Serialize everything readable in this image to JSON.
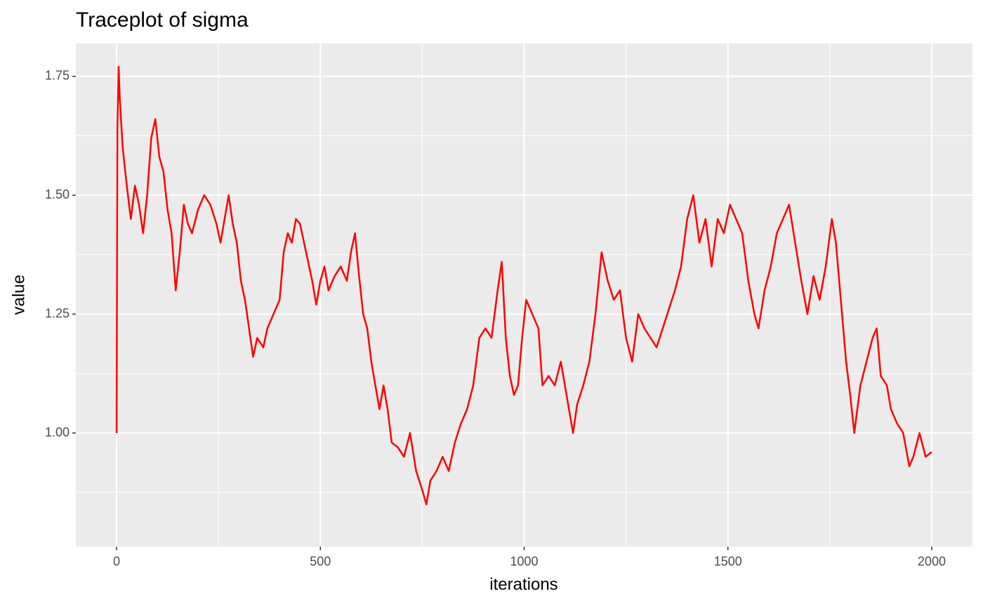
{
  "chart_data": {
    "type": "line",
    "title": "Traceplot of sigma",
    "x_label": "iterations",
    "y_label": "value",
    "x": [
      0,
      2,
      5,
      8,
      15,
      25,
      35,
      45,
      55,
      65,
      75,
      85,
      95,
      105,
      115,
      125,
      135,
      145,
      155,
      165,
      175,
      185,
      200,
      215,
      230,
      245,
      255,
      265,
      275,
      285,
      295,
      305,
      315,
      325,
      335,
      345,
      360,
      370,
      385,
      400,
      410,
      420,
      430,
      440,
      450,
      460,
      470,
      480,
      490,
      500,
      510,
      520,
      535,
      550,
      565,
      575,
      585,
      595,
      605,
      615,
      625,
      635,
      645,
      655,
      665,
      675,
      690,
      705,
      720,
      735,
      750,
      760,
      770,
      785,
      800,
      815,
      830,
      845,
      860,
      875,
      890,
      905,
      920,
      935,
      945,
      955,
      965,
      975,
      985,
      995,
      1005,
      1020,
      1035,
      1045,
      1060,
      1075,
      1090,
      1100,
      1110,
      1120,
      1130,
      1145,
      1160,
      1175,
      1190,
      1205,
      1220,
      1235,
      1250,
      1265,
      1280,
      1295,
      1310,
      1325,
      1340,
      1355,
      1370,
      1385,
      1400,
      1415,
      1430,
      1445,
      1460,
      1475,
      1490,
      1505,
      1520,
      1535,
      1550,
      1565,
      1575,
      1590,
      1605,
      1620,
      1635,
      1650,
      1665,
      1680,
      1695,
      1710,
      1725,
      1740,
      1755,
      1765,
      1775,
      1790,
      1800,
      1810,
      1825,
      1840,
      1855,
      1865,
      1875,
      1890,
      1900,
      1915,
      1930,
      1945,
      1955,
      1970,
      1985,
      2000
    ],
    "series": [
      {
        "name": "sigma",
        "color": "#ff0000",
        "values": [
          1.0,
          1.65,
          1.77,
          1.7,
          1.6,
          1.52,
          1.45,
          1.52,
          1.48,
          1.42,
          1.5,
          1.62,
          1.66,
          1.58,
          1.55,
          1.47,
          1.42,
          1.3,
          1.38,
          1.48,
          1.44,
          1.42,
          1.47,
          1.5,
          1.48,
          1.44,
          1.4,
          1.45,
          1.5,
          1.44,
          1.4,
          1.32,
          1.28,
          1.22,
          1.16,
          1.2,
          1.18,
          1.22,
          1.25,
          1.28,
          1.38,
          1.42,
          1.4,
          1.45,
          1.44,
          1.4,
          1.36,
          1.32,
          1.27,
          1.32,
          1.35,
          1.3,
          1.33,
          1.35,
          1.32,
          1.38,
          1.42,
          1.33,
          1.25,
          1.22,
          1.15,
          1.1,
          1.05,
          1.1,
          1.05,
          0.98,
          0.97,
          0.95,
          1.0,
          0.92,
          0.88,
          0.85,
          0.9,
          0.92,
          0.95,
          0.92,
          0.98,
          1.02,
          1.05,
          1.1,
          1.2,
          1.22,
          1.2,
          1.3,
          1.36,
          1.2,
          1.12,
          1.08,
          1.1,
          1.2,
          1.28,
          1.25,
          1.22,
          1.1,
          1.12,
          1.1,
          1.15,
          1.1,
          1.05,
          1.0,
          1.06,
          1.1,
          1.15,
          1.25,
          1.38,
          1.32,
          1.28,
          1.3,
          1.2,
          1.15,
          1.25,
          1.22,
          1.2,
          1.18,
          1.22,
          1.26,
          1.3,
          1.35,
          1.45,
          1.5,
          1.4,
          1.45,
          1.35,
          1.45,
          1.42,
          1.48,
          1.45,
          1.42,
          1.32,
          1.25,
          1.22,
          1.3,
          1.35,
          1.42,
          1.45,
          1.48,
          1.4,
          1.32,
          1.25,
          1.33,
          1.28,
          1.35,
          1.45,
          1.4,
          1.3,
          1.15,
          1.08,
          1.0,
          1.1,
          1.15,
          1.2,
          1.22,
          1.12,
          1.1,
          1.05,
          1.02,
          1.0,
          0.93,
          0.95,
          1.0,
          0.95,
          0.96
        ]
      }
    ],
    "xlim": [
      -100,
      2100
    ],
    "ylim": [
      0.761,
      1.819
    ],
    "xticks": [
      0,
      500,
      1000,
      1500,
      2000
    ],
    "yticks": [
      {
        "value": 1,
        "label": "1.00"
      },
      {
        "value": 1.25,
        "label": "1.25"
      },
      {
        "value": 1.5,
        "label": "1.50"
      },
      {
        "value": 1.75,
        "label": "1.75"
      }
    ],
    "grid": true,
    "panel_color": "#ebebeb"
  }
}
